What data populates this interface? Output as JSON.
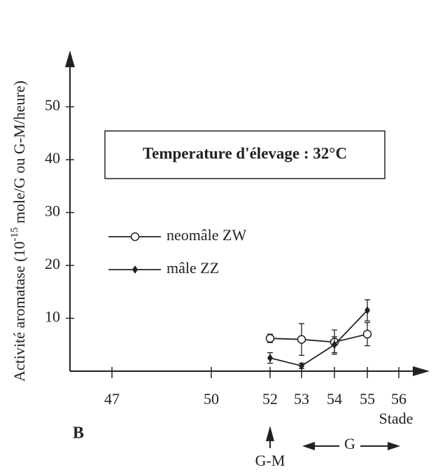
{
  "chart_data": {
    "type": "line",
    "ylabel": "Activité aromatase (10",
    "ylabel_sup": "-15",
    "ylabel_rest": " mole/G ou G-M/heure)",
    "xlabel": "Stade",
    "annotation": "Temperature d'élevage : 32°C",
    "panel": "B",
    "markers": [
      "G-M",
      "G"
    ],
    "categories": [
      "47",
      "50",
      "52",
      "53",
      "54",
      "55",
      "56"
    ],
    "series": [
      {
        "name": "neomâle ZW",
        "color": "#222",
        "marker": "open-circle",
        "values": [
          null,
          null,
          6.2,
          6,
          5.5,
          7,
          null
        ],
        "errors": [
          null,
          null,
          0.8,
          3,
          2.3,
          2.2,
          null
        ]
      },
      {
        "name": "mâle ZZ",
        "color": "#222",
        "marker": "diamond",
        "values": [
          null,
          null,
          2.5,
          1,
          5,
          11.5,
          null
        ],
        "errors": [
          null,
          null,
          1,
          0.5,
          1.5,
          2,
          null
        ]
      }
    ],
    "ylim": [
      0,
      60
    ],
    "yticks": [
      10,
      20,
      30,
      40,
      50
    ]
  }
}
